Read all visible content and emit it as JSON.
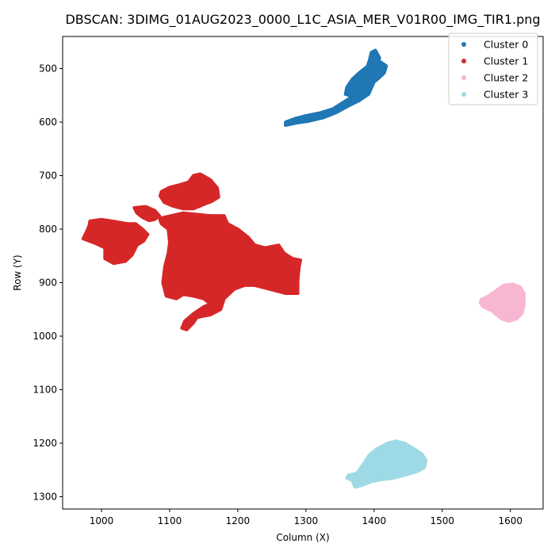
{
  "chart_data": {
    "type": "scatter",
    "title": "DBSCAN: 3DIMG_01AUG2023_0000_L1C_ASIA_MER_V01R00_IMG_TIR1.png",
    "xlabel": "Column (X)",
    "ylabel": "Row (Y)",
    "xlim": [
      943,
      1648
    ],
    "ylim": [
      1323,
      440
    ],
    "y_inverted": true,
    "grid": false,
    "legend_position": "top-right",
    "xticks": [
      1000,
      1100,
      1200,
      1300,
      1400,
      1500,
      1600
    ],
    "yticks": [
      500,
      600,
      700,
      800,
      900,
      1000,
      1100,
      1200,
      1300
    ],
    "series": [
      {
        "name": "Cluster 0",
        "color": "#1f77b4",
        "regions": [
          [
            [
              1270,
              600
            ],
            [
              1285,
              593
            ],
            [
              1300,
              588
            ],
            [
              1320,
              583
            ],
            [
              1340,
              575
            ],
            [
              1355,
              563
            ],
            [
              1365,
              555
            ],
            [
              1372,
              545
            ],
            [
              1378,
              535
            ],
            [
              1383,
              523
            ],
            [
              1387,
              512
            ],
            [
              1390,
              497
            ],
            [
              1393,
              485
            ],
            [
              1396,
              470
            ],
            [
              1402,
              466
            ],
            [
              1408,
              480
            ],
            [
              1405,
              500
            ],
            [
              1400,
              525
            ],
            [
              1392,
              548
            ],
            [
              1378,
              560
            ],
            [
              1362,
              570
            ],
            [
              1345,
              582
            ],
            [
              1325,
              592
            ],
            [
              1305,
              598
            ],
            [
              1285,
              602
            ],
            [
              1270,
              606
            ]
          ],
          [
            [
              1360,
              535
            ],
            [
              1368,
              520
            ],
            [
              1378,
              508
            ],
            [
              1390,
              496
            ],
            [
              1400,
              490
            ],
            [
              1410,
              488
            ],
            [
              1418,
              495
            ],
            [
              1415,
              508
            ],
            [
              1405,
              520
            ],
            [
              1392,
              532
            ],
            [
              1380,
              545
            ],
            [
              1368,
              552
            ],
            [
              1358,
              548
            ]
          ]
        ]
      },
      {
        "name": "Cluster 1",
        "color": "#d62728",
        "regions": [
          [
            [
              1085,
              780
            ],
            [
              1120,
              770
            ],
            [
              1160,
              775
            ],
            [
              1180,
              775
            ],
            [
              1185,
              790
            ],
            [
              1200,
              800
            ],
            [
              1215,
              815
            ],
            [
              1225,
              830
            ],
            [
              1240,
              835
            ],
            [
              1260,
              830
            ],
            [
              1268,
              845
            ],
            [
              1280,
              855
            ],
            [
              1292,
              858
            ],
            [
              1290,
              870
            ],
            [
              1288,
              895
            ],
            [
              1288,
              920
            ],
            [
              1270,
              920
            ],
            [
              1255,
              915
            ],
            [
              1240,
              910
            ],
            [
              1225,
              905
            ],
            [
              1210,
              905
            ],
            [
              1195,
              912
            ],
            [
              1180,
              930
            ],
            [
              1175,
              950
            ],
            [
              1160,
              960
            ],
            [
              1140,
              965
            ],
            [
              1135,
              975
            ],
            [
              1125,
              988
            ],
            [
              1118,
              985
            ],
            [
              1122,
              972
            ],
            [
              1135,
              958
            ],
            [
              1150,
              945
            ],
            [
              1160,
              940
            ],
            [
              1150,
              930
            ],
            [
              1135,
              925
            ],
            [
              1120,
              922
            ],
            [
              1110,
              930
            ],
            [
              1095,
              925
            ],
            [
              1090,
              900
            ],
            [
              1093,
              870
            ],
            [
              1098,
              845
            ],
            [
              1100,
              825
            ],
            [
              1098,
              800
            ],
            [
              1088,
              790
            ]
          ],
          [
            [
              1088,
              730
            ],
            [
              1100,
              722
            ],
            [
              1115,
              717
            ],
            [
              1128,
              712
            ],
            [
              1135,
              700
            ],
            [
              1145,
              697
            ],
            [
              1160,
              708
            ],
            [
              1170,
              723
            ],
            [
              1172,
              740
            ],
            [
              1162,
              748
            ],
            [
              1148,
              755
            ],
            [
              1135,
              762
            ],
            [
              1120,
              762
            ],
            [
              1105,
              757
            ],
            [
              1092,
              750
            ],
            [
              1086,
              738
            ]
          ],
          [
            [
              1048,
              760
            ],
            [
              1065,
              758
            ],
            [
              1078,
              765
            ],
            [
              1085,
              775
            ],
            [
              1078,
              782
            ],
            [
              1070,
              784
            ],
            [
              1060,
              778
            ],
            [
              1052,
              770
            ]
          ],
          [
            [
              983,
              785
            ],
            [
              1000,
              782
            ],
            [
              1020,
              786
            ],
            [
              1038,
              790
            ],
            [
              1050,
              790
            ],
            [
              1060,
              800
            ],
            [
              1068,
              810
            ],
            [
              1062,
              822
            ],
            [
              1052,
              830
            ],
            [
              1045,
              848
            ],
            [
              1035,
              860
            ],
            [
              1018,
              864
            ],
            [
              1005,
              855
            ],
            [
              1005,
              835
            ],
            [
              990,
              826
            ],
            [
              973,
              818
            ],
            [
              978,
              805
            ],
            [
              982,
              793
            ]
          ]
        ]
      },
      {
        "name": "Cluster 2",
        "color": "#f7b6d2",
        "regions": [
          [
            [
              1557,
              932
            ],
            [
              1568,
              925
            ],
            [
              1578,
              916
            ],
            [
              1590,
              905
            ],
            [
              1604,
              903
            ],
            [
              1614,
              908
            ],
            [
              1620,
              920
            ],
            [
              1620,
              942
            ],
            [
              1617,
              957
            ],
            [
              1610,
              967
            ],
            [
              1598,
              972
            ],
            [
              1588,
              968
            ],
            [
              1580,
              960
            ],
            [
              1572,
              952
            ],
            [
              1560,
              945
            ],
            [
              1556,
              938
            ]
          ]
        ]
      },
      {
        "name": "Cluster 3",
        "color": "#9edae5",
        "regions": [
          [
            [
              1362,
              1260
            ],
            [
              1375,
              1256
            ],
            [
              1385,
              1238
            ],
            [
              1393,
              1222
            ],
            [
              1405,
              1210
            ],
            [
              1420,
              1200
            ],
            [
              1432,
              1196
            ],
            [
              1445,
              1200
            ],
            [
              1458,
              1210
            ],
            [
              1470,
              1220
            ],
            [
              1476,
              1232
            ],
            [
              1474,
              1245
            ],
            [
              1465,
              1252
            ],
            [
              1450,
              1258
            ],
            [
              1438,
              1262
            ],
            [
              1425,
              1266
            ],
            [
              1410,
              1268
            ],
            [
              1395,
              1272
            ],
            [
              1384,
              1278
            ],
            [
              1372,
              1282
            ],
            [
              1368,
              1270
            ],
            [
              1360,
              1265
            ]
          ]
        ]
      }
    ]
  }
}
